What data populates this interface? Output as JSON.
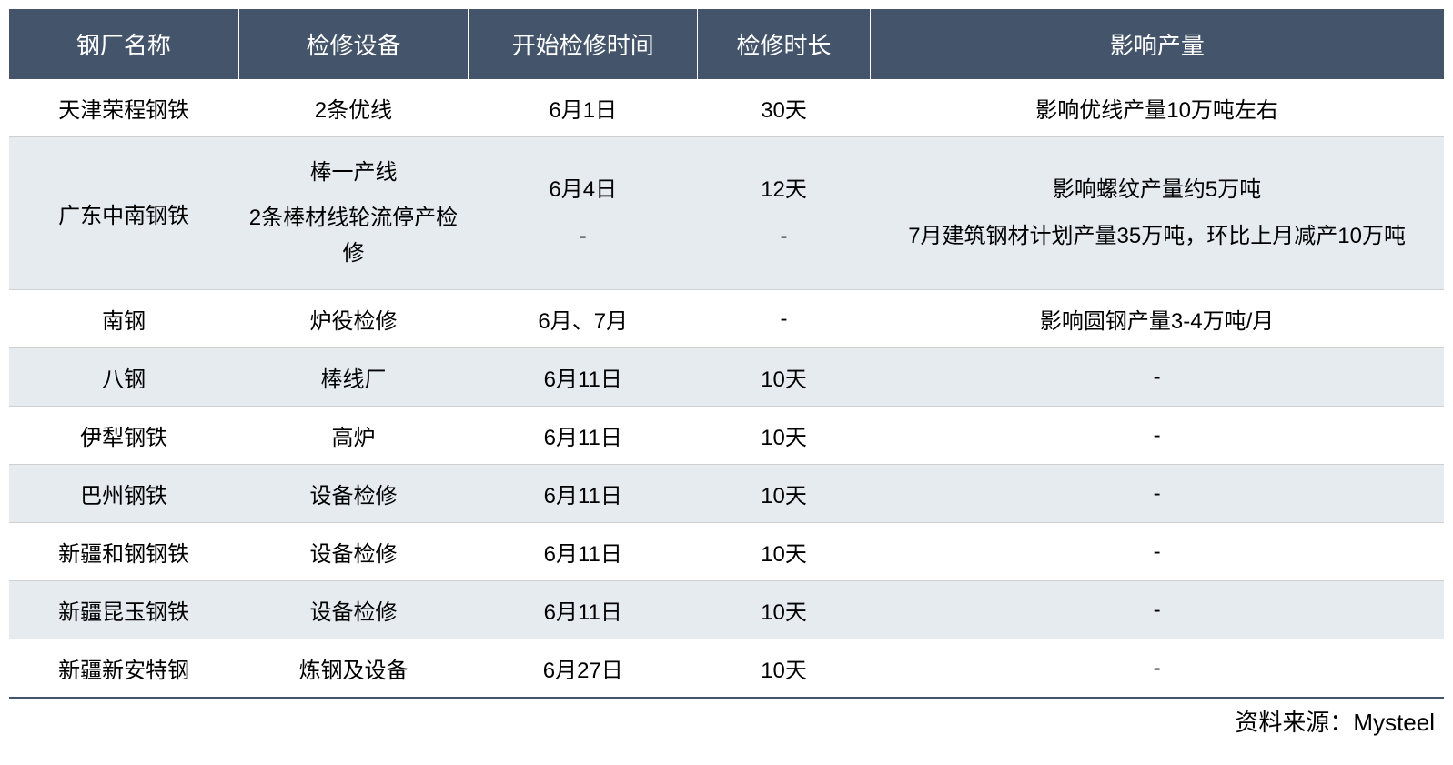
{
  "table": {
    "header_bg": "#44546a",
    "header_color": "#ffffff",
    "row_white_bg": "#ffffff",
    "row_light_bg": "#e6ebf0",
    "border_color": "#d0d0d0",
    "bottom_border_color": "#44546a",
    "font_size_header": 26,
    "font_size_cell": 24,
    "columns": [
      {
        "label": "钢厂名称",
        "width": "16%"
      },
      {
        "label": "检修设备",
        "width": "16%"
      },
      {
        "label": "开始检修时间",
        "width": "16%"
      },
      {
        "label": "检修时长",
        "width": "12%"
      },
      {
        "label": "影响产量",
        "width": "40%"
      }
    ],
    "rows": [
      {
        "bg": "white",
        "cells": {
          "name": "天津荣程钢铁",
          "equipment": "2条优线",
          "start": "6月1日",
          "duration": "30天",
          "impact": "影响优线产量10万吨左右"
        }
      },
      {
        "bg": "light",
        "multi": true,
        "cells": {
          "name": "广东中南钢铁",
          "equipment_1": "棒一产线",
          "equipment_2": "2条棒材线轮流停产检修",
          "start_1": "6月4日",
          "start_2": "-",
          "duration_1": "12天",
          "duration_2": "-",
          "impact_1": "影响螺纹产量约5万吨",
          "impact_2": "7月建筑钢材计划产量35万吨，环比上月减产10万吨"
        }
      },
      {
        "bg": "white",
        "cells": {
          "name": "南钢",
          "equipment": "炉役检修",
          "start": "6月、7月",
          "duration": "-",
          "impact": "影响圆钢产量3-4万吨/月"
        }
      },
      {
        "bg": "light",
        "cells": {
          "name": "八钢",
          "equipment": "棒线厂",
          "start": "6月11日",
          "duration": "10天",
          "impact": "-"
        }
      },
      {
        "bg": "white",
        "cells": {
          "name": "伊犁钢铁",
          "equipment": "高炉",
          "start": "6月11日",
          "duration": "10天",
          "impact": "-"
        }
      },
      {
        "bg": "light",
        "cells": {
          "name": "巴州钢铁",
          "equipment": "设备检修",
          "start": "6月11日",
          "duration": "10天",
          "impact": "-"
        }
      },
      {
        "bg": "white",
        "cells": {
          "name": "新疆和钢钢铁",
          "equipment": "设备检修",
          "start": "6月11日",
          "duration": "10天",
          "impact": "-"
        }
      },
      {
        "bg": "light",
        "cells": {
          "name": "新疆昆玉钢铁",
          "equipment": "设备检修",
          "start": "6月11日",
          "duration": "10天",
          "impact": "-"
        }
      },
      {
        "bg": "white",
        "cells": {
          "name": "新疆新安特钢",
          "equipment": "炼钢及设备",
          "start": "6月27日",
          "duration": "10天",
          "impact": "-"
        }
      }
    ]
  },
  "source": {
    "label": "资料来源：Mysteel"
  }
}
